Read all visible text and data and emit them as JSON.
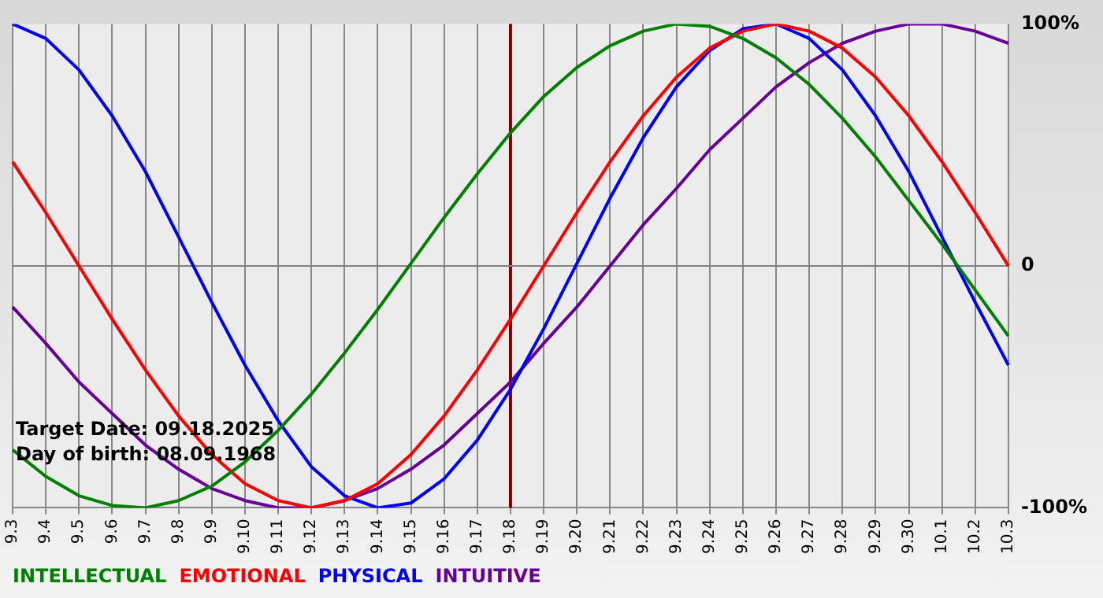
{
  "chart_data": {
    "type": "line",
    "categories": [
      "9.3",
      "9.4",
      "9.5",
      "9.6",
      "9.7",
      "9.8",
      "9.9",
      "9.10",
      "9.11",
      "9.12",
      "9.13",
      "9.14",
      "9.15",
      "9.16",
      "9.17",
      "9.18",
      "9.19",
      "9.20",
      "9.21",
      "9.22",
      "9.23",
      "9.24",
      "9.25",
      "9.26",
      "9.27",
      "9.28",
      "9.29",
      "9.30",
      "10.1",
      "10.2",
      "10.3"
    ],
    "series": [
      {
        "name": "INTELLECTUAL",
        "color": "#008000",
        "values": [
          -76,
          -87,
          -95,
          -99,
          -100,
          -97,
          -91,
          -81,
          -68,
          -53,
          -36,
          -18,
          1,
          20,
          38,
          55,
          70,
          82,
          91,
          97,
          100,
          99,
          94,
          86,
          75,
          61,
          45,
          27,
          9,
          -10,
          -29
        ]
      },
      {
        "name": "EMOTIONAL",
        "color": "#ff0000",
        "values": [
          43,
          22,
          0,
          -22,
          -43,
          -62,
          -78,
          -90,
          -97,
          -100,
          -97,
          -90,
          -78,
          -62,
          -43,
          -22,
          0,
          22,
          43,
          62,
          78,
          90,
          97,
          100,
          97,
          90,
          78,
          62,
          43,
          22,
          0
        ]
      },
      {
        "name": "PHYSICAL",
        "color": "#0000ff",
        "values": [
          100,
          94,
          81,
          62,
          39,
          12,
          -15,
          -41,
          -64,
          -83,
          -95,
          -100,
          -98,
          -88,
          -72,
          -51,
          -26,
          1,
          28,
          53,
          74,
          89,
          98,
          100,
          94,
          81,
          62,
          39,
          12,
          -15,
          -41
        ]
      },
      {
        "name": "INTUITIVE",
        "color": "#660099",
        "values": [
          -17,
          -32,
          -48,
          -61,
          -74,
          -84,
          -92,
          -97,
          -100,
          -100,
          -97,
          -92,
          -84,
          -74,
          -61,
          -48,
          -32,
          -17,
          0,
          17,
          32,
          48,
          61,
          74,
          84,
          92,
          97,
          100,
          100,
          97,
          92
        ]
      }
    ],
    "ylim": [
      -100,
      100
    ],
    "yticks": [
      {
        "value": -100,
        "label": "-100%"
      },
      0,
      {
        "value": 100,
        "label": "100%"
      }
    ],
    "grid": "x",
    "ref_lines": [
      {
        "axis": "x",
        "value": "9.18",
        "color": "#800000"
      },
      {
        "axis": "y",
        "value": 0,
        "color": "#808080"
      }
    ],
    "annotations": [
      "Target Date: 09.18.2025",
      "Day of birth: 08.09.1968"
    ],
    "legend": "bottom",
    "marker": "none",
    "line_style": "solid"
  }
}
